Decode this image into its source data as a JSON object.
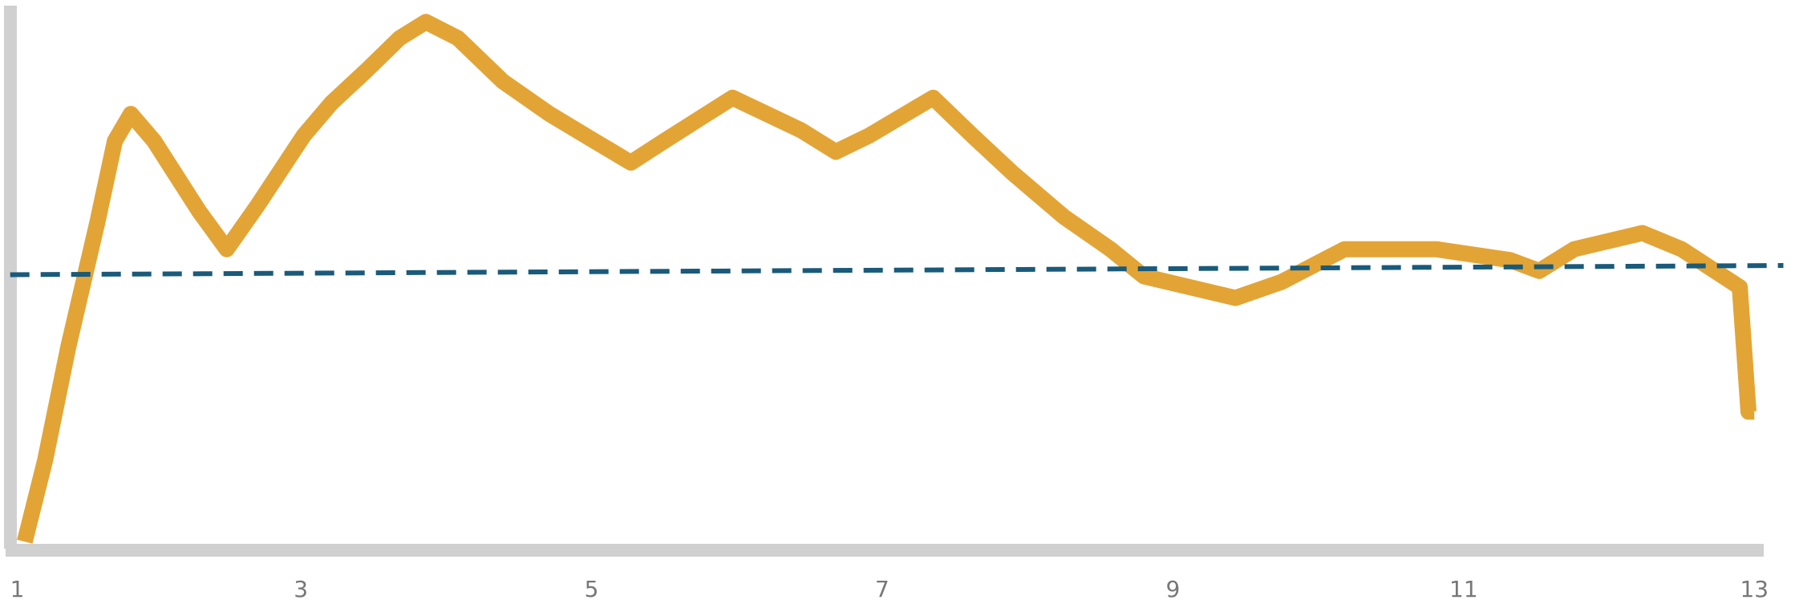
{
  "chart_data": {
    "type": "line",
    "xlim": [
      0.93,
      13.28
    ],
    "xticks": [
      1,
      3,
      5,
      7,
      9,
      11,
      13
    ],
    "ylim": [
      0,
      100
    ],
    "series": [
      {
        "color": "#e3a436",
        "style": "solid",
        "x": [
          1.1,
          1.24,
          1.4,
          1.6,
          1.72,
          1.83,
          1.99,
          2.3,
          2.49,
          2.7,
          3.02,
          3.21,
          3.45,
          3.68,
          3.86,
          4.08,
          4.39,
          4.71,
          5.02,
          5.27,
          5.5,
          5.97,
          6.44,
          6.68,
          6.91,
          7.35,
          7.62,
          7.9,
          8.25,
          8.57,
          8.8,
          9.43,
          9.75,
          10.18,
          10.81,
          11.32,
          11.52,
          11.76,
          12.23,
          12.5,
          12.9,
          12.96,
          13
        ],
        "values": [
          1,
          16,
          37,
          60,
          75,
          80,
          75,
          62,
          55,
          63,
          76,
          82,
          88,
          94,
          97,
          94,
          86,
          80,
          75,
          71,
          75,
          83,
          77,
          73,
          76,
          83,
          76,
          69,
          61,
          55,
          50,
          46,
          49,
          55,
          55,
          53,
          51,
          55,
          58,
          55,
          48,
          25,
          25
        ]
      },
      {
        "color": "#1a5a7a",
        "style": "dashed",
        "x": [
          1,
          13.2
        ],
        "values": [
          50.3,
          52
        ]
      }
    ]
  }
}
